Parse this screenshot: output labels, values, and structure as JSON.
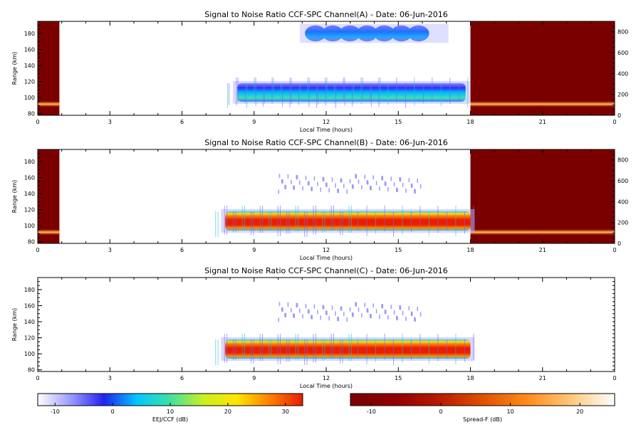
{
  "chart_data": [
    {
      "type": "heatmap",
      "title": "Signal to Noise Ratio CCF-SPC Channel(A) - Date: 06-Jun-2016",
      "xlabel": "Local Time (hours)",
      "ylabel": "Range (km)",
      "xlim": [
        0,
        24
      ],
      "ylim": [
        78,
        195
      ],
      "xticks": [
        "0",
        "3",
        "6",
        "9",
        "12",
        "15",
        "18",
        "21",
        "0"
      ],
      "yticks": [
        "80",
        "100",
        "120",
        "140",
        "160",
        "180"
      ],
      "right_yticks": [
        "0",
        "200",
        "400",
        "600",
        "800"
      ],
      "right_ylim": [
        0,
        900
      ],
      "colormap": "EEJ/CCF (dB)",
      "spread_f_time_ranges": [
        [
          0,
          0.9
        ],
        [
          18,
          24
        ]
      ],
      "echo_regions": [
        {
          "name": "EEJ layer",
          "t_start": 8.3,
          "t_end": 17.8,
          "range_low": 95,
          "range_high": 118,
          "peak_snr_db": 5
        },
        {
          "name": "150 km echoes",
          "t_start": 11.2,
          "t_end": 16.2,
          "range_low": 170,
          "range_high": 190,
          "peak_snr_db": -2
        }
      ],
      "spread_f_trace": {
        "range_km": 92,
        "peak_snr_db": 22
      }
    },
    {
      "type": "heatmap",
      "title": "Signal to Noise Ratio CCF-SPC Channel(B) - Date: 06-Jun-2016",
      "xlabel": "Local Time (hours)",
      "ylabel": "Range (km)",
      "xlim": [
        0,
        24
      ],
      "ylim": [
        78,
        195
      ],
      "xticks": [
        "0",
        "3",
        "6",
        "9",
        "12",
        "15",
        "18",
        "21",
        "0"
      ],
      "yticks": [
        "80",
        "100",
        "120",
        "140",
        "160",
        "180"
      ],
      "right_yticks": [
        "0",
        "200",
        "400",
        "600",
        "800"
      ],
      "right_ylim": [
        0,
        900
      ],
      "colormap": "EEJ/CCF (dB)",
      "spread_f_time_ranges": [
        [
          0,
          0.9
        ],
        [
          18,
          24
        ]
      ],
      "echo_regions": [
        {
          "name": "EEJ layer",
          "t_start": 7.8,
          "t_end": 18.0,
          "range_low": 94,
          "range_high": 118,
          "peak_snr_db": 30
        },
        {
          "name": "150 km echoes",
          "t_start": 10,
          "t_end": 16,
          "range_low": 145,
          "range_high": 165,
          "peak_snr_db": -8
        }
      ],
      "spread_f_trace": {
        "range_km": 92,
        "peak_snr_db": 22
      }
    },
    {
      "type": "heatmap",
      "title": "Signal to Noise Ratio CCF-SPC Channel(C) - Date: 06-Jun-2016",
      "xlabel": "Local Time (hours)",
      "ylabel": "Range (km)",
      "xlim": [
        0,
        24
      ],
      "ylim": [
        78,
        195
      ],
      "xticks": [
        "0",
        "3",
        "6",
        "9",
        "12",
        "15",
        "18",
        "21",
        "0"
      ],
      "yticks": [
        "80",
        "100",
        "120",
        "140",
        "160",
        "180"
      ],
      "colormap": "EEJ/CCF (dB)",
      "echo_regions": [
        {
          "name": "EEJ layer",
          "t_start": 7.8,
          "t_end": 18.0,
          "range_low": 94,
          "range_high": 118,
          "peak_snr_db": 30
        },
        {
          "name": "150 km echoes",
          "t_start": 10,
          "t_end": 16,
          "range_low": 145,
          "range_high": 165,
          "peak_snr_db": -8
        }
      ]
    }
  ],
  "colorbars": [
    {
      "label": "EEJ/CCF (dB)",
      "range": [
        -13,
        33
      ],
      "ticks": [
        "-10",
        "0",
        "10",
        "20",
        "30"
      ],
      "colors": [
        "#ffffff",
        "#9a9aff",
        "#2222ee",
        "#00c8ff",
        "#40e0a0",
        "#c8f020",
        "#ffe600",
        "#ff8000",
        "#e81c00"
      ]
    },
    {
      "label": "Spread-F (dB)",
      "range": [
        -13,
        25
      ],
      "ticks": [
        "-10",
        "0",
        "10",
        "20"
      ],
      "colors": [
        "#7a0000",
        "#900000",
        "#b81a00",
        "#e05000",
        "#ff8a1a",
        "#ffc878",
        "#ffffff"
      ]
    }
  ]
}
